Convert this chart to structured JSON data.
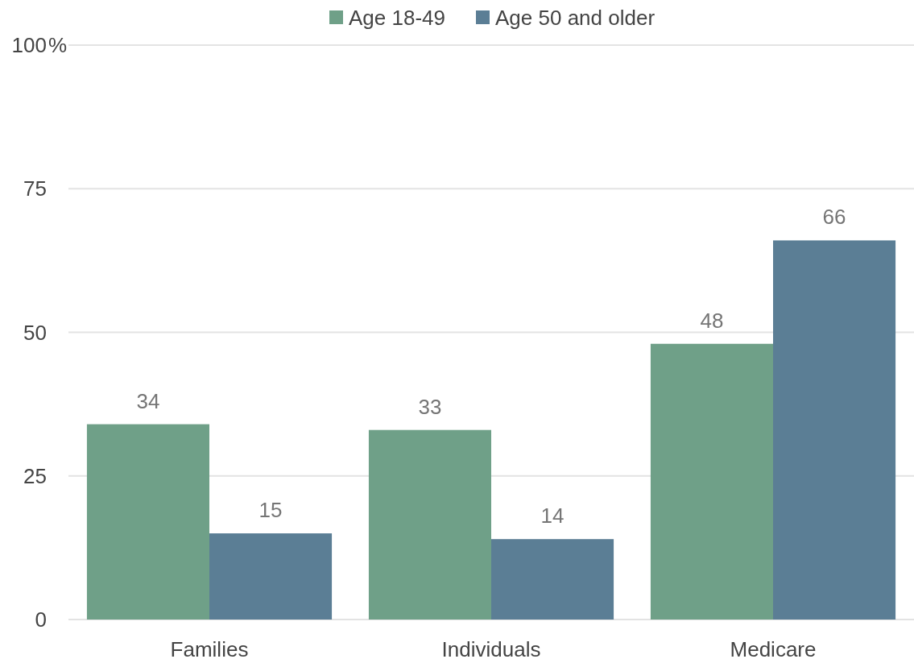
{
  "chart_data": {
    "type": "bar",
    "categories": [
      "Families",
      "Individuals",
      "Medicare"
    ],
    "series": [
      {
        "name": "Age 18-49",
        "color": "#6fa088",
        "values": [
          34,
          33,
          48
        ]
      },
      {
        "name": "Age 50 and older",
        "color": "#5b7e95",
        "values": [
          15,
          14,
          66
        ]
      }
    ],
    "ylim": [
      0,
      100
    ],
    "yticks": [
      0,
      25,
      50,
      75,
      {
        "value": 100,
        "label": "100%"
      }
    ],
    "grid": "y",
    "legend": "top",
    "data_labels": true
  }
}
